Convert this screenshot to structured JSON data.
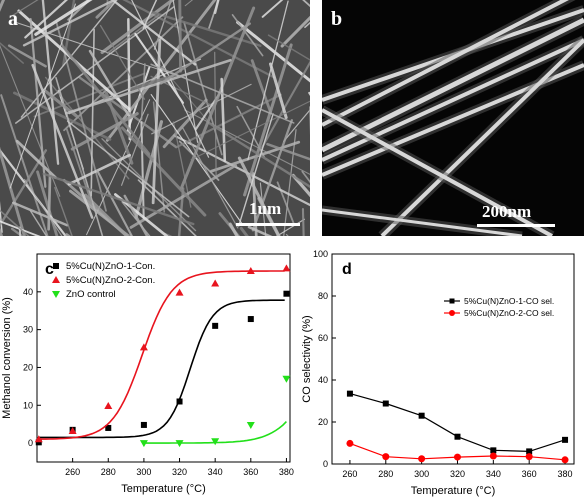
{
  "panels": {
    "a": {
      "letter": "a",
      "scale_label": "1um"
    },
    "b": {
      "letter": "b",
      "scale_label": "200nm"
    }
  },
  "chart_data": [
    {
      "type": "scatter",
      "panel_letter": "c",
      "xlabel": "Temperature (°C)",
      "ylabel": "Methanol conversion (%)",
      "xlim": [
        240,
        382
      ],
      "ylim": [
        -5,
        50
      ],
      "xticks": [
        260,
        280,
        300,
        320,
        340,
        360,
        380
      ],
      "yticks": [
        0,
        10,
        20,
        30,
        40
      ],
      "grid": false,
      "legend_position": "top-left",
      "series": [
        {
          "name": "5%Cu(N)ZnO-1-Con.",
          "marker": "square",
          "color": "#000000",
          "x": [
            241,
            260,
            280,
            300,
            320,
            340,
            360,
            380
          ],
          "y": [
            0.2,
            3.5,
            4.0,
            4.8,
            11.0,
            31.0,
            32.8,
            39.5
          ]
        },
        {
          "name": "5%Cu(N)ZnO-2-Con.",
          "marker": "triangle-up",
          "color": "#e8141e",
          "x": [
            241,
            260,
            280,
            300,
            320,
            340,
            360,
            380
          ],
          "y": [
            1.0,
            3.2,
            9.8,
            25.3,
            39.8,
            42.2,
            45.5,
            46.2
          ]
        },
        {
          "name": "ZnO control",
          "marker": "triangle-down",
          "color": "#22e01a",
          "x": [
            300,
            320,
            340,
            360,
            380
          ],
          "y": [
            0.0,
            0.0,
            0.5,
            4.8,
            17.0
          ]
        }
      ]
    },
    {
      "type": "line",
      "panel_letter": "d",
      "xlabel": "Temperature (°C)",
      "ylabel": "CO selectivity (%)",
      "xlim": [
        250,
        385
      ],
      "ylim": [
        0,
        100
      ],
      "xticks": [
        260,
        280,
        300,
        320,
        340,
        360,
        380
      ],
      "yticks": [
        0,
        20,
        40,
        60,
        80,
        100
      ],
      "grid": false,
      "legend_position": "upper-right",
      "series": [
        {
          "name": "5%Cu(N)ZnO-1-CO sel.",
          "marker": "square",
          "color": "#000000",
          "x": [
            260,
            280,
            300,
            320,
            340,
            360,
            380
          ],
          "y": [
            33.5,
            28.8,
            23.0,
            13.0,
            6.5,
            6.0,
            11.5
          ]
        },
        {
          "name": "5%Cu(N)ZnO-2-CO sel.",
          "marker": "circle",
          "color": "#ff0000",
          "x": [
            260,
            280,
            300,
            320,
            340,
            360,
            380
          ],
          "y": [
            9.8,
            3.5,
            2.5,
            3.3,
            3.8,
            3.5,
            2.0
          ]
        }
      ]
    }
  ]
}
